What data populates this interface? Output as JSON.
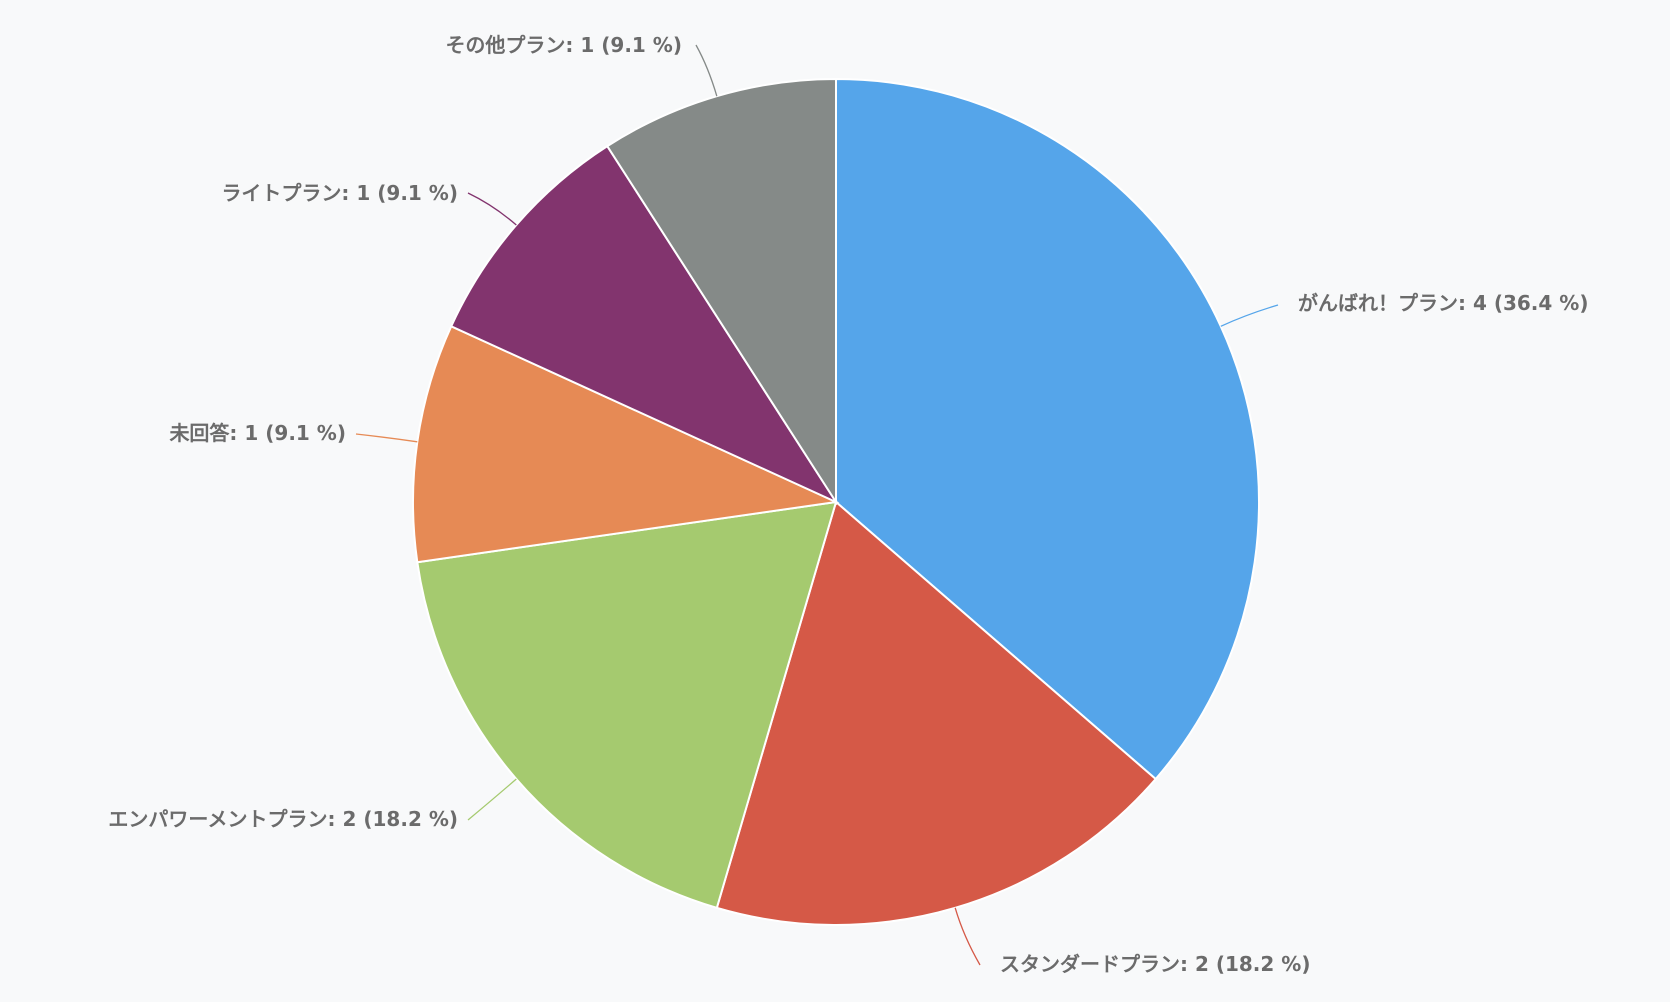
{
  "chart_data": {
    "type": "pie",
    "title": "",
    "slices": [
      {
        "label": "がんばれ！プラン",
        "value": 4,
        "percent": "36.4 %",
        "color": "#55a5ea",
        "text": "がんばれ！プラン: 4 (36.4 %)"
      },
      {
        "label": "スタンダードプラン",
        "value": 2,
        "percent": "18.2 %",
        "color": "#d55947",
        "text": "スタンダードプラン: 2 (18.2 %)"
      },
      {
        "label": "エンパワーメントプラン",
        "value": 2,
        "percent": "18.2 %",
        "color": "#a5ca6f",
        "text": "エンパワーメントプラン: 2 (18.2 %)"
      },
      {
        "label": "未回答",
        "value": 1,
        "percent": "9.1 %",
        "color": "#e68a55",
        "text": "未回答: 1 (9.1 %)"
      },
      {
        "label": "ライトプラン",
        "value": 1,
        "percent": "9.1 %",
        "color": "#82346e",
        "text": "ライトプラン: 1 (9.1 %)"
      },
      {
        "label": "その他プラン",
        "value": 1,
        "percent": "9.1 %",
        "color": "#858a88",
        "text": "その他プラン: 1 (9.1 %)"
      }
    ],
    "start_angle": "top",
    "direction": "clockwise",
    "label_color": "#6b6b6b",
    "background": "#f8f9fa"
  }
}
